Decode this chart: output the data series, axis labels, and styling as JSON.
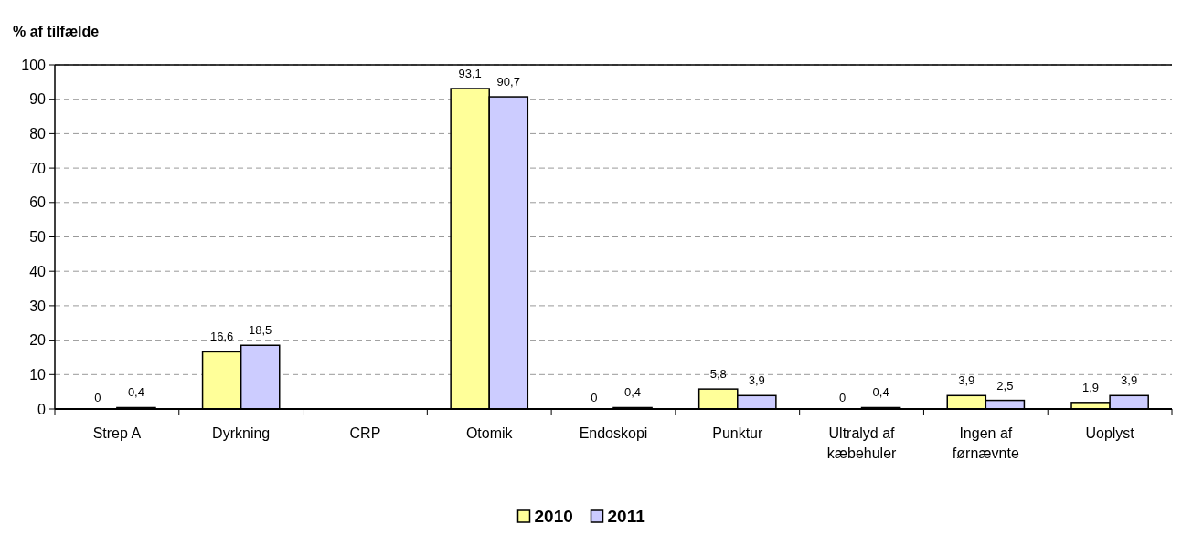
{
  "chart_data": {
    "type": "bar",
    "ylabel": "% af tilfælde",
    "categories": [
      "Strep A",
      "Dyrkning",
      "CRP",
      "Otomik",
      "Endoskopi",
      "Punktur",
      "Ultralyd af kæbehuler",
      "Ingen af førnævnte",
      "Uoplyst"
    ],
    "series": [
      {
        "name": "2010",
        "color": "#ffff99",
        "values": [
          0,
          16.6,
          null,
          93.1,
          0,
          5.8,
          0,
          3.9,
          1.9
        ],
        "value_labels": [
          "0",
          "16,6",
          null,
          "93,1",
          "0",
          "5,8",
          "0",
          "3,9",
          "1,9"
        ]
      },
      {
        "name": "2011",
        "color": "#ccccff",
        "values": [
          0.4,
          18.5,
          null,
          90.7,
          0.4,
          3.9,
          0.4,
          2.5,
          3.9
        ],
        "value_labels": [
          "0,4",
          "18,5",
          null,
          "90,7",
          "0,4",
          "3,9",
          "0,4",
          "2,5",
          "3,9"
        ]
      }
    ],
    "ylim": [
      0,
      100
    ],
    "yticks": [
      0,
      10,
      20,
      30,
      40,
      50,
      60,
      70,
      80,
      90,
      100
    ],
    "grid": "y",
    "legend": "bottom"
  }
}
